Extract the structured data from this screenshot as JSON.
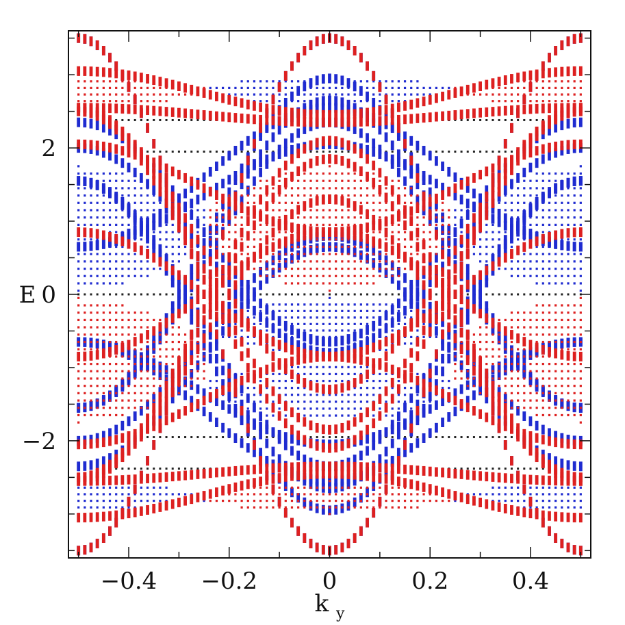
{
  "chart_data": {
    "type": "scatter",
    "title": "",
    "xlabel": "k",
    "xlabel_subscript": "y",
    "ylabel": "E",
    "xlim": [
      -0.52,
      0.52
    ],
    "ylim": [
      -3.6,
      3.6
    ],
    "xticks": [
      -0.4,
      -0.2,
      0,
      0.2,
      0.4
    ],
    "xtick_labels": [
      "−0.4",
      "−0.2",
      "0",
      "0.2",
      "0.4"
    ],
    "yticks": [
      -2,
      0,
      2
    ],
    "ytick_labels": [
      "−2",
      "0",
      "2"
    ],
    "grid": false,
    "legend": "none",
    "sampling": {
      "kmin": -0.5,
      "kmax": 0.5,
      "count": 81
    },
    "flat_levels": [
      2.38,
      1.95,
      0.0,
      -1.95,
      -2.38
    ],
    "series": [
      {
        "color": "#1f2bd0",
        "bands": [
          {
            "shape": "cos",
            "e0": 0.0,
            "amp": 3.5
          },
          {
            "shape": "cos",
            "e0": 0.0,
            "amp": -3.5
          },
          {
            "shape": "cos",
            "e0": 0.7,
            "amp": 2.25
          },
          {
            "shape": "cos",
            "e0": 0.55,
            "amp": 2.1
          },
          {
            "shape": "cos",
            "e0": 0.4,
            "amp": 1.95
          },
          {
            "shape": "cos",
            "e0": -0.7,
            "amp": -2.25
          },
          {
            "shape": "cos",
            "e0": -0.55,
            "amp": -2.1
          },
          {
            "shape": "cos",
            "e0": -0.4,
            "amp": -1.95
          },
          {
            "shape": "cos",
            "e0": 1.35,
            "amp": 0.7
          },
          {
            "shape": "cos",
            "e0": -1.35,
            "amp": -0.7
          },
          {
            "shape": "cos",
            "e0": 1.6,
            "amp": 0.95
          },
          {
            "shape": "cos",
            "e0": -1.6,
            "amp": -0.95
          },
          {
            "shape": "cos",
            "e0": 0.6,
            "amp": -1.4
          },
          {
            "shape": "cos",
            "e0": -0.6,
            "amp": 1.4
          },
          {
            "shape": "cos",
            "e0": 0.85,
            "amp": -1.5
          },
          {
            "shape": "cos",
            "e0": -0.85,
            "amp": 1.5
          },
          {
            "shape": "fill",
            "lo": 0.05,
            "hi": 1.75,
            "side": "edges",
            "n": 18
          },
          {
            "shape": "fill",
            "lo": -0.85,
            "hi": -0.05,
            "side": "center",
            "n": 10
          },
          {
            "shape": "fill",
            "lo": -1.75,
            "hi": -0.9,
            "side": "center",
            "n": 10
          },
          {
            "shape": "fill",
            "lo": -3.0,
            "hi": -2.55,
            "side": "edges",
            "n": 6
          },
          {
            "shape": "fill",
            "lo": 2.55,
            "hi": 3.0,
            "side": "center",
            "n": 6
          }
        ]
      },
      {
        "color": "#dd2020",
        "bands": [
          {
            "shape": "cos",
            "e0": 0.0,
            "amp": -3.5
          },
          {
            "shape": "cos",
            "e0": 0.0,
            "amp": 3.5
          },
          {
            "shape": "cos",
            "e0": 0.6,
            "amp": -1.9
          },
          {
            "shape": "cos",
            "e0": 0.35,
            "amp": -2.2
          },
          {
            "shape": "cos",
            "e0": 0.2,
            "amp": -2.3
          },
          {
            "shape": "cos",
            "e0": -0.6,
            "amp": 1.9
          },
          {
            "shape": "cos",
            "e0": -0.35,
            "amp": 2.2
          },
          {
            "shape": "cos",
            "e0": -0.2,
            "amp": 2.3
          },
          {
            "shape": "cos",
            "e0": 2.75,
            "amp": -0.3
          },
          {
            "shape": "cos",
            "e0": 2.45,
            "amp": -0.1
          },
          {
            "shape": "cos",
            "e0": -2.75,
            "amp": 0.3
          },
          {
            "shape": "cos",
            "e0": -2.45,
            "amp": 0.1
          },
          {
            "shape": "cos",
            "e0": 0.0,
            "amp": -0.85
          },
          {
            "shape": "cos",
            "e0": 0.0,
            "amp": 0.85
          },
          {
            "shape": "cos",
            "e0": 1.45,
            "amp": -0.6
          },
          {
            "shape": "cos",
            "e0": -1.45,
            "amp": 0.6
          },
          {
            "shape": "fill",
            "lo": 0.05,
            "hi": 1.75,
            "side": "center",
            "n": 18
          },
          {
            "shape": "fill",
            "lo": -1.75,
            "hi": -0.05,
            "side": "edges",
            "n": 18
          },
          {
            "shape": "fill",
            "lo": 2.55,
            "hi": 3.0,
            "side": "edges",
            "n": 6
          },
          {
            "shape": "fill",
            "lo": -3.0,
            "hi": -2.55,
            "side": "center",
            "n": 6
          }
        ]
      }
    ]
  }
}
